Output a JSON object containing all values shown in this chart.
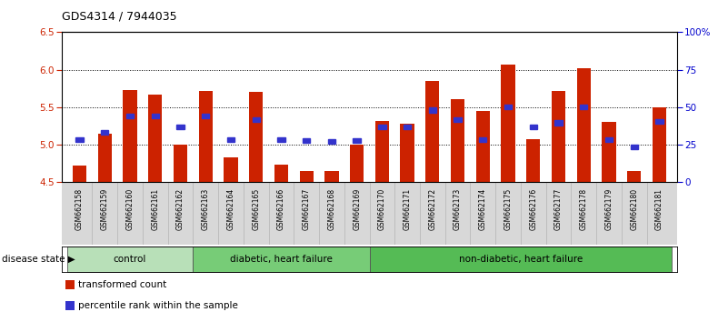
{
  "title": "GDS4314 / 7944035",
  "samples": [
    "GSM662158",
    "GSM662159",
    "GSM662160",
    "GSM662161",
    "GSM662162",
    "GSM662163",
    "GSM662164",
    "GSM662165",
    "GSM662166",
    "GSM662167",
    "GSM662168",
    "GSM662169",
    "GSM662170",
    "GSM662171",
    "GSM662172",
    "GSM662173",
    "GSM662174",
    "GSM662175",
    "GSM662176",
    "GSM662177",
    "GSM662178",
    "GSM662179",
    "GSM662180",
    "GSM662181"
  ],
  "bar_values": [
    4.72,
    5.15,
    5.73,
    5.67,
    5.0,
    5.72,
    4.83,
    5.7,
    4.73,
    4.65,
    4.65,
    5.0,
    5.31,
    5.28,
    5.85,
    5.6,
    5.45,
    6.07,
    5.07,
    5.71,
    6.02,
    5.3,
    4.65,
    5.5
  ],
  "blue_values": [
    5.06,
    5.16,
    5.38,
    5.38,
    5.24,
    5.38,
    5.06,
    5.33,
    5.06,
    5.05,
    5.04,
    5.05,
    5.23,
    5.24,
    5.46,
    5.33,
    5.06,
    5.5,
    5.24,
    5.29,
    5.5,
    5.06,
    4.97,
    5.31
  ],
  "bar_color": "#cc2200",
  "blue_color": "#3333cc",
  "ylim_left": [
    4.5,
    6.5
  ],
  "ylim_right": [
    0,
    100
  ],
  "yticks_left": [
    4.5,
    5.0,
    5.5,
    6.0,
    6.5
  ],
  "yticks_right": [
    0,
    25,
    50,
    75,
    100
  ],
  "ytick_labels_right": [
    "0",
    "25",
    "50",
    "75",
    "100%"
  ],
  "grid_values": [
    5.0,
    5.5,
    6.0
  ],
  "groups": [
    {
      "label": "control",
      "start": 0,
      "end": 4,
      "color": "#b8e0b8"
    },
    {
      "label": "diabetic, heart failure",
      "start": 5,
      "end": 11,
      "color": "#77cc77"
    },
    {
      "label": "non-diabetic, heart failure",
      "start": 12,
      "end": 23,
      "color": "#55bb55"
    }
  ],
  "disease_state_label": "disease state",
  "legend_items": [
    {
      "label": "transformed count",
      "color": "#cc2200"
    },
    {
      "label": "percentile rank within the sample",
      "color": "#3333cc"
    }
  ],
  "bar_width": 0.55,
  "left_ytick_color": "#cc2200",
  "right_ytick_color": "#0000cc",
  "tick_bg": "#d8d8d8",
  "plot_bg": "#ffffff"
}
